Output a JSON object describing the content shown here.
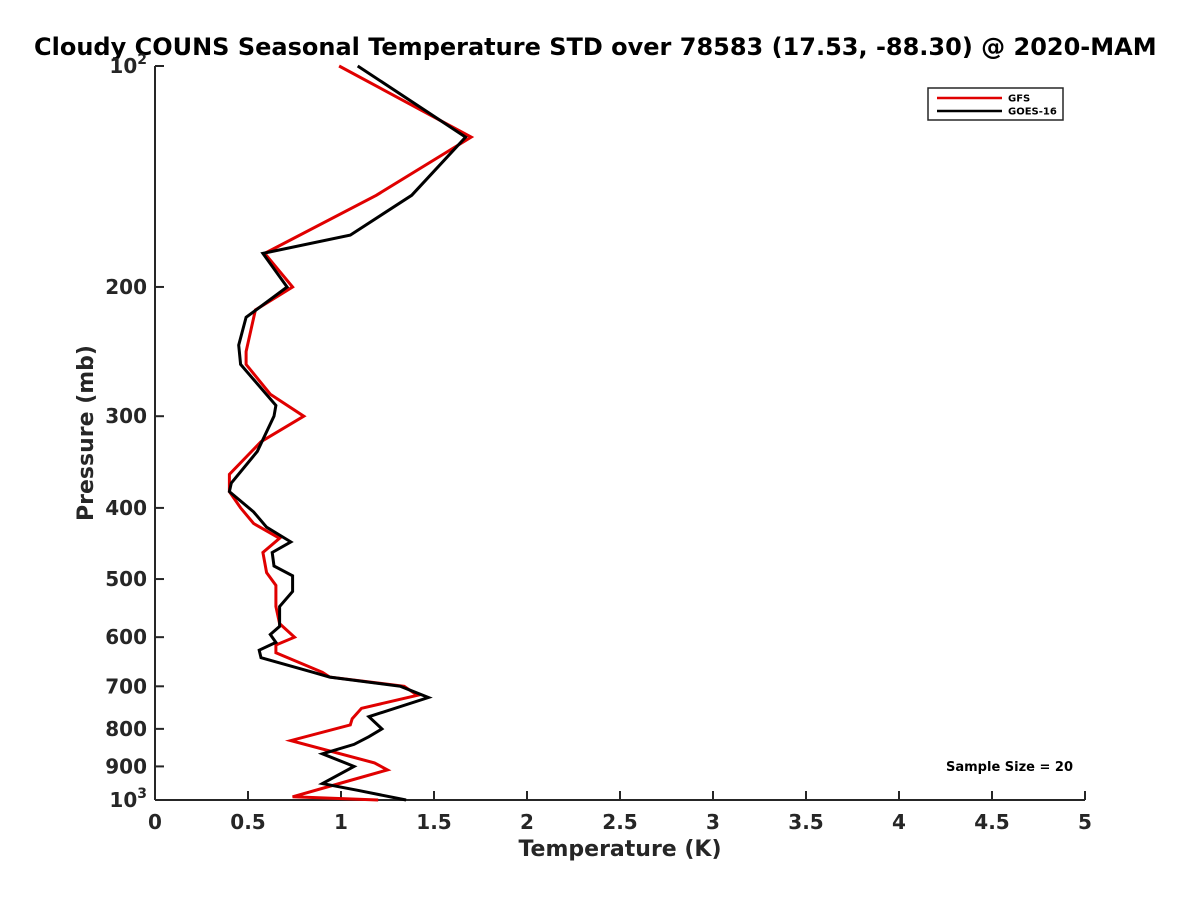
{
  "chart_data": {
    "type": "line",
    "title": "Cloudy COUNS Seasonal Temperature STD over 78583 (17.53, -88.30) @ 2020-MAM",
    "xlabel": "Temperature (K)",
    "ylabel": "Pressure (mb)",
    "xlim": [
      0,
      5
    ],
    "ylim": [
      1000,
      100
    ],
    "yscale": "log",
    "y_reversed": true,
    "xticks": [
      0,
      0.5,
      1,
      1.5,
      2,
      2.5,
      3,
      3.5,
      4,
      4.5,
      5
    ],
    "xtick_labels": [
      "0",
      "0.5",
      "1",
      "1.5",
      "2",
      "2.5",
      "3",
      "3.5",
      "4",
      "4.5",
      "5"
    ],
    "yticks": [
      {
        "value": 100,
        "base": "10",
        "exp": "2"
      },
      {
        "value": 200,
        "label": "200"
      },
      {
        "value": 300,
        "label": "300"
      },
      {
        "value": 400,
        "label": "400"
      },
      {
        "value": 500,
        "label": "500"
      },
      {
        "value": 600,
        "label": "600"
      },
      {
        "value": 700,
        "label": "700"
      },
      {
        "value": 800,
        "label": "800"
      },
      {
        "value": 900,
        "label": "900"
      },
      {
        "value": 1000,
        "base": "10",
        "exp": "3"
      }
    ],
    "legend_position": "top-right",
    "grid": false,
    "annotation": "Sample Size = 20",
    "series": [
      {
        "name": "GFS",
        "color": "#e00000",
        "points": [
          [
            0.99,
            100
          ],
          [
            1.7,
            125
          ],
          [
            1.19,
            150
          ],
          [
            0.59,
            180
          ],
          [
            0.74,
            200
          ],
          [
            0.54,
            215
          ],
          [
            0.49,
            245
          ],
          [
            0.49,
            255
          ],
          [
            0.62,
            280
          ],
          [
            0.8,
            300
          ],
          [
            0.57,
            325
          ],
          [
            0.4,
            360
          ],
          [
            0.4,
            380
          ],
          [
            0.46,
            400
          ],
          [
            0.53,
            420
          ],
          [
            0.67,
            440
          ],
          [
            0.58,
            460
          ],
          [
            0.6,
            490
          ],
          [
            0.65,
            510
          ],
          [
            0.65,
            545
          ],
          [
            0.67,
            575
          ],
          [
            0.75,
            600
          ],
          [
            0.65,
            615
          ],
          [
            0.65,
            630
          ],
          [
            0.9,
            670
          ],
          [
            0.94,
            680
          ],
          [
            1.34,
            700
          ],
          [
            1.41,
            720
          ],
          [
            1.11,
            750
          ],
          [
            1.06,
            775
          ],
          [
            1.05,
            790
          ],
          [
            0.73,
            830
          ],
          [
            1.18,
            890
          ],
          [
            1.25,
            910
          ],
          [
            1.02,
            945
          ],
          [
            0.74,
            990
          ],
          [
            1.2,
            1000
          ]
        ]
      },
      {
        "name": "GOES-16",
        "color": "#000000",
        "points": [
          [
            1.09,
            100
          ],
          [
            1.67,
            125
          ],
          [
            1.38,
            150
          ],
          [
            1.05,
            170
          ],
          [
            0.58,
            180
          ],
          [
            0.71,
            200
          ],
          [
            0.49,
            220
          ],
          [
            0.45,
            240
          ],
          [
            0.46,
            255
          ],
          [
            0.65,
            290
          ],
          [
            0.64,
            300
          ],
          [
            0.55,
            335
          ],
          [
            0.41,
            370
          ],
          [
            0.4,
            380
          ],
          [
            0.53,
            405
          ],
          [
            0.6,
            425
          ],
          [
            0.73,
            445
          ],
          [
            0.63,
            460
          ],
          [
            0.64,
            480
          ],
          [
            0.74,
            495
          ],
          [
            0.74,
            520
          ],
          [
            0.67,
            545
          ],
          [
            0.67,
            580
          ],
          [
            0.62,
            595
          ],
          [
            0.65,
            610
          ],
          [
            0.56,
            625
          ],
          [
            0.57,
            640
          ],
          [
            0.85,
            670
          ],
          [
            0.94,
            680
          ],
          [
            1.32,
            700
          ],
          [
            1.47,
            725
          ],
          [
            1.15,
            770
          ],
          [
            1.22,
            800
          ],
          [
            1.15,
            820
          ],
          [
            1.07,
            840
          ],
          [
            0.9,
            865
          ],
          [
            1.07,
            900
          ],
          [
            0.9,
            950
          ],
          [
            1.09,
            970
          ],
          [
            1.35,
            1000
          ]
        ]
      }
    ]
  }
}
